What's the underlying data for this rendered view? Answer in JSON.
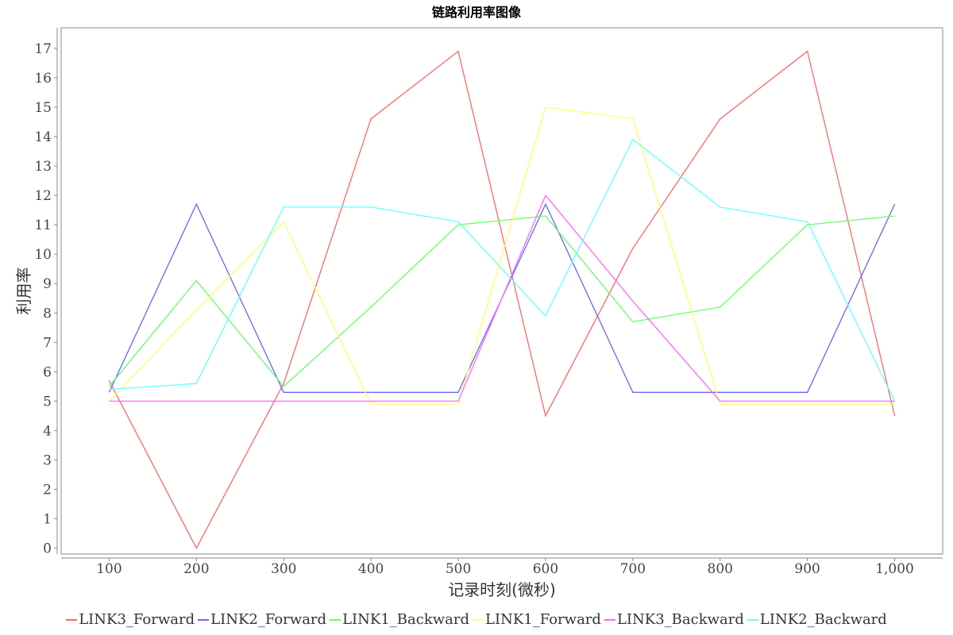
{
  "chart_data": {
    "type": "line",
    "title": "链路利用率图像",
    "xlabel": "记录时刻(微秒)",
    "ylabel": "利用率",
    "x": [
      100,
      200,
      300,
      400,
      500,
      600,
      700,
      800,
      900,
      1000
    ],
    "x_tick_labels": [
      "100",
      "200",
      "300",
      "400",
      "500",
      "600",
      "700",
      "800",
      "900",
      "1,000"
    ],
    "y_ticks": [
      0,
      1,
      2,
      3,
      4,
      5,
      6,
      7,
      8,
      9,
      10,
      11,
      12,
      13,
      14,
      15,
      16,
      17
    ],
    "xlim": [
      45,
      1055
    ],
    "ylim": [
      -0.2,
      17.7
    ],
    "grid": false,
    "legend_position": "bottom",
    "series": [
      {
        "name": "LINK3_Forward",
        "color": "#ff6666",
        "values": [
          5.7,
          0.0,
          5.6,
          14.6,
          16.9,
          4.5,
          10.2,
          14.6,
          16.9,
          4.5
        ]
      },
      {
        "name": "LINK2_Forward",
        "color": "#6666ff",
        "values": [
          5.3,
          11.7,
          5.3,
          5.3,
          5.3,
          11.7,
          5.3,
          5.3,
          5.3,
          11.7
        ]
      },
      {
        "name": "LINK1_Backward",
        "color": "#66ff66",
        "values": [
          5.5,
          9.1,
          5.5,
          8.2,
          11.0,
          11.3,
          7.7,
          8.2,
          11.0,
          11.3
        ]
      },
      {
        "name": "LINK1_Forward",
        "color": "#ffff66",
        "values": [
          5.0,
          8.1,
          11.1,
          4.9,
          4.9,
          15.0,
          14.6,
          4.9,
          4.9,
          4.9
        ]
      },
      {
        "name": "LINK3_Backward",
        "color": "#ff66ff",
        "values": [
          5.0,
          5.0,
          5.0,
          5.0,
          5.0,
          12.0,
          8.4,
          5.0,
          5.0,
          5.0
        ]
      },
      {
        "name": "LINK2_Backward",
        "color": "#66ffff",
        "values": [
          5.4,
          5.6,
          11.6,
          11.6,
          11.1,
          7.9,
          13.9,
          11.6,
          11.1,
          5.0
        ]
      }
    ]
  }
}
